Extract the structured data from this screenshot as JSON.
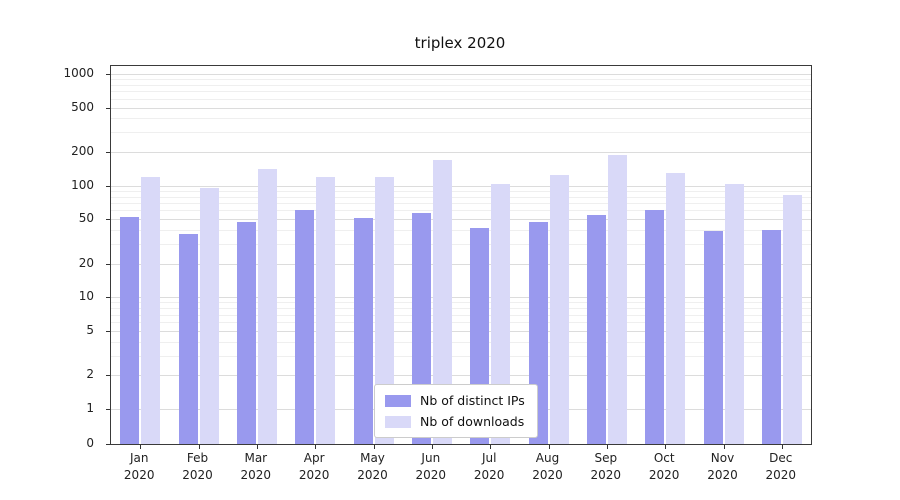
{
  "chart_data": {
    "type": "bar",
    "title": "triplex 2020",
    "scale": "symlog",
    "grid": true,
    "legend_position": "lower center",
    "categories": [
      "Jan 2020",
      "Feb 2020",
      "Mar 2020",
      "Apr 2020",
      "May 2020",
      "Jun 2020",
      "Jul 2020",
      "Aug 2020",
      "Sep 2020",
      "Oct 2020",
      "Nov 2020",
      "Dec 2020"
    ],
    "yticks": [
      0,
      1,
      2,
      5,
      10,
      20,
      50,
      100,
      200,
      500,
      1000
    ],
    "ylim": [
      0,
      1000
    ],
    "xlabel": "",
    "ylabel": "",
    "series": [
      {
        "name": "Nb of distinct IPs",
        "color": "#9999ee",
        "values": [
          53,
          37,
          47,
          60,
          51,
          57,
          42,
          47,
          55,
          60,
          39,
          40
        ]
      },
      {
        "name": "Nb of downloads",
        "color": "#d9d9f8",
        "values": [
          120,
          96,
          140,
          120,
          120,
          170,
          104,
          125,
          190,
          130,
          103,
          83
        ]
      }
    ]
  }
}
